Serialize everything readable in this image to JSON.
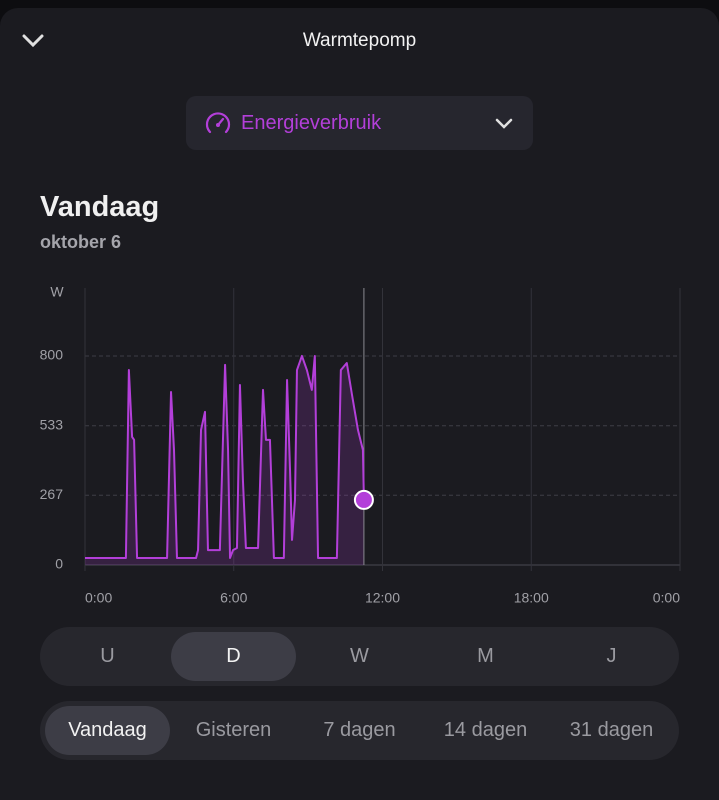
{
  "header": {
    "title": "Warmtepomp"
  },
  "selector": {
    "label": "Energieverbruik"
  },
  "heading": {
    "title": "Vandaag",
    "date": "oktober 6"
  },
  "chart_data": {
    "type": "line",
    "y_unit": "W",
    "color": "#b33fd9",
    "x": [
      0,
      1.65,
      1.77,
      1.9,
      1.98,
      2.1,
      3.31,
      3.47,
      3.59,
      3.71,
      4.48,
      4.56,
      4.68,
      4.84,
      4.96,
      5.44,
      5.65,
      5.77,
      5.85,
      5.97,
      6.13,
      6.25,
      6.37,
      6.49,
      6.98,
      7.18,
      7.3,
      7.46,
      7.62,
      8.02,
      8.15,
      8.27,
      8.35,
      8.47,
      8.55,
      8.75,
      8.95,
      9.15,
      9.27,
      9.4,
      10.16,
      10.32,
      10.56,
      10.77,
      11.01,
      11.21,
      11.25
    ],
    "values": [
      27,
      27,
      746,
      490,
      479,
      27,
      27,
      662,
      440,
      27,
      27,
      57,
      517,
      586,
      57,
      57,
      766,
      440,
      27,
      57,
      65,
      689,
      325,
      65,
      65,
      670,
      479,
      479,
      27,
      27,
      708,
      364,
      96,
      249,
      746,
      800,
      746,
      670,
      800,
      27,
      27,
      746,
      773,
      651,
      517,
      440,
      249
    ],
    "xlim": [
      0,
      24
    ],
    "ylim": [
      0,
      1060
    ],
    "xticks": [
      {
        "value": 0,
        "label": "0:00"
      },
      {
        "value": 6,
        "label": "6:00"
      },
      {
        "value": 12,
        "label": "12:00"
      },
      {
        "value": 18,
        "label": "18:00"
      },
      {
        "value": 24,
        "label": "0:00"
      }
    ],
    "yticks": [
      0,
      267,
      533,
      800
    ],
    "grid": true
  },
  "periods": {
    "options": [
      "U",
      "D",
      "W",
      "M",
      "J"
    ],
    "selected": 1
  },
  "ranges": {
    "options": [
      "Vandaag",
      "Gisteren",
      "7 dagen",
      "14 dagen",
      "31 dagen"
    ],
    "selected": 0
  }
}
